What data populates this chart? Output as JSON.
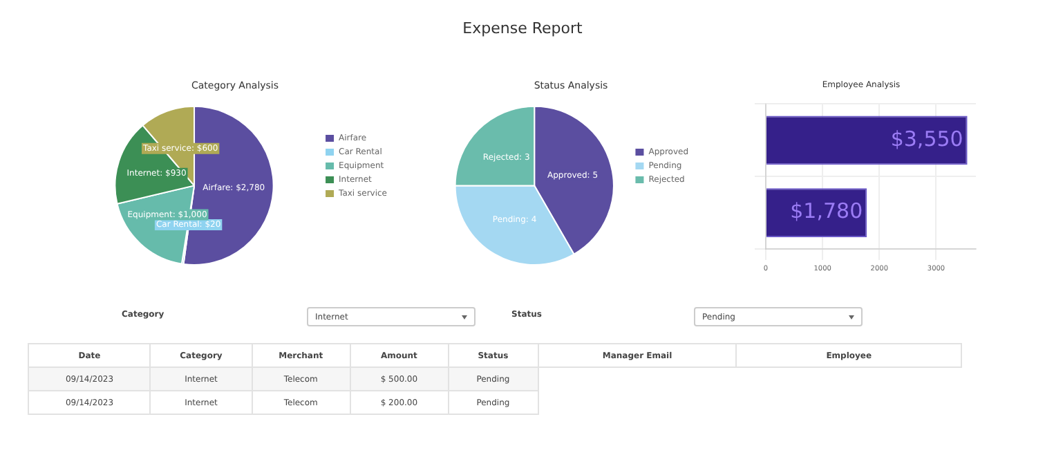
{
  "chart_data": [
    {
      "type": "other",
      "title": "Expense Report"
    },
    {
      "type": "pie",
      "title": "Category Analysis",
      "categories": [
        "Airfare",
        "Car Rental",
        "Equipment",
        "Internet",
        "Taxi service"
      ],
      "values": [
        2780,
        20,
        1000,
        930,
        600
      ],
      "colors": [
        "#5b4ea0",
        "#8fd3f0",
        "#66bbab",
        "#3c8f55",
        "#b0aa55"
      ],
      "value_labels": [
        "Airfare: $2,780",
        "Car Rental: $20",
        "Equipment: $1,000",
        "Internet: $930",
        "Taxi service: $600"
      ],
      "legend": "right"
    },
    {
      "type": "pie",
      "title": "Status Analysis",
      "categories": [
        "Approved",
        "Pending",
        "Rejected"
      ],
      "values": [
        5,
        4,
        3
      ],
      "colors": [
        "#5b4ea0",
        "#a4d8f2",
        "#6abcac"
      ],
      "value_labels": [
        "Approved: 5",
        "Pending: 4",
        "Rejected: 3"
      ],
      "legend": "right"
    },
    {
      "type": "bar",
      "orientation": "horizontal",
      "title": "Employee Analysis",
      "categories": [
        null,
        null
      ],
      "values": [
        3550,
        1780
      ],
      "color": "#35208a",
      "xlim": [
        0,
        3700
      ],
      "xticks": [
        0,
        1000,
        2000,
        3000
      ],
      "grid": true,
      "value_labels": [
        "$3,550",
        "$1,780"
      ]
    },
    {
      "type": "other",
      "annotations": [
        "Category",
        "Internet",
        "Status",
        "Pending",
        "Date",
        "Category",
        "Merchant",
        "Amount",
        "Status",
        "Manager Email",
        "Employee",
        "09/14/2023",
        "Internet",
        "Telecom",
        "$ 500.00",
        "Pending",
        "09/14/2023",
        "Internet",
        "Telecom",
        "$ 200.00",
        "Pending"
      ]
    }
  ]
}
